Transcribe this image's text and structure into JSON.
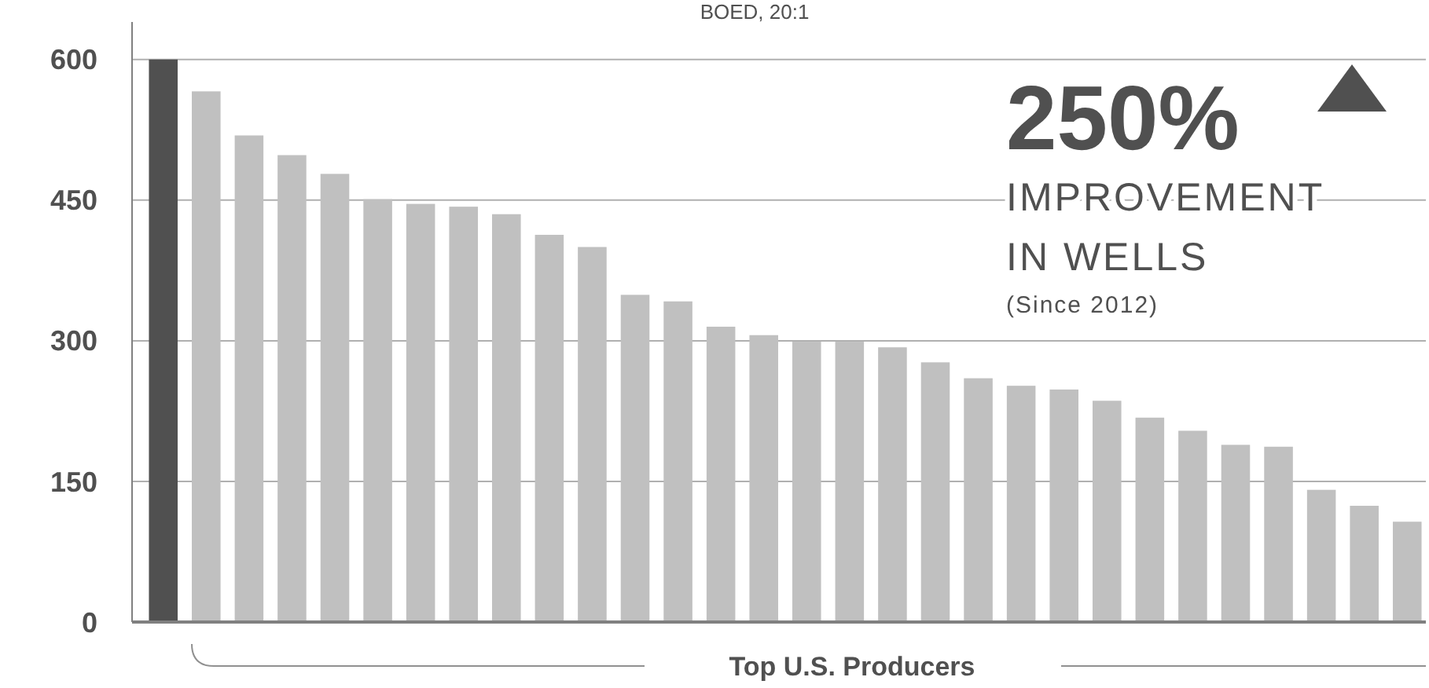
{
  "chart_data": {
    "type": "bar",
    "title": "BOED, 20:1",
    "categories": [
      null,
      null,
      null,
      null,
      null,
      null,
      null,
      null,
      null,
      null,
      null,
      null,
      null,
      null,
      null,
      null,
      null,
      null,
      null,
      null,
      null,
      null,
      null,
      null,
      null,
      null,
      null,
      null,
      null,
      null
    ],
    "values": [
      600,
      566,
      519,
      498,
      478,
      451,
      446,
      443,
      435,
      413,
      400,
      349,
      342,
      315,
      306,
      299,
      299,
      293,
      277,
      260,
      252,
      248,
      236,
      218,
      204,
      189,
      187,
      141,
      124,
      107
    ],
    "colors": [
      "#505050",
      "#c0c0c0",
      "#c0c0c0",
      "#c0c0c0",
      "#c0c0c0",
      "#c0c0c0",
      "#c0c0c0",
      "#c0c0c0",
      "#c0c0c0",
      "#c0c0c0",
      "#c0c0c0",
      "#c0c0c0",
      "#c0c0c0",
      "#c0c0c0",
      "#c0c0c0",
      "#c0c0c0",
      "#c0c0c0",
      "#c0c0c0",
      "#c0c0c0",
      "#c0c0c0",
      "#c0c0c0",
      "#c0c0c0",
      "#c0c0c0",
      "#c0c0c0",
      "#c0c0c0",
      "#c0c0c0",
      "#c0c0c0",
      "#c0c0c0",
      "#c0c0c0",
      "#c0c0c0"
    ],
    "ylim": [
      0,
      640
    ],
    "yticks": [
      0,
      150,
      300,
      450,
      600
    ],
    "grid": "y",
    "annotations": [
      "250%",
      "IMPROVEMENT",
      "IN WELLS",
      "(Since 2012)",
      "Top U.S. Producers"
    ]
  }
}
